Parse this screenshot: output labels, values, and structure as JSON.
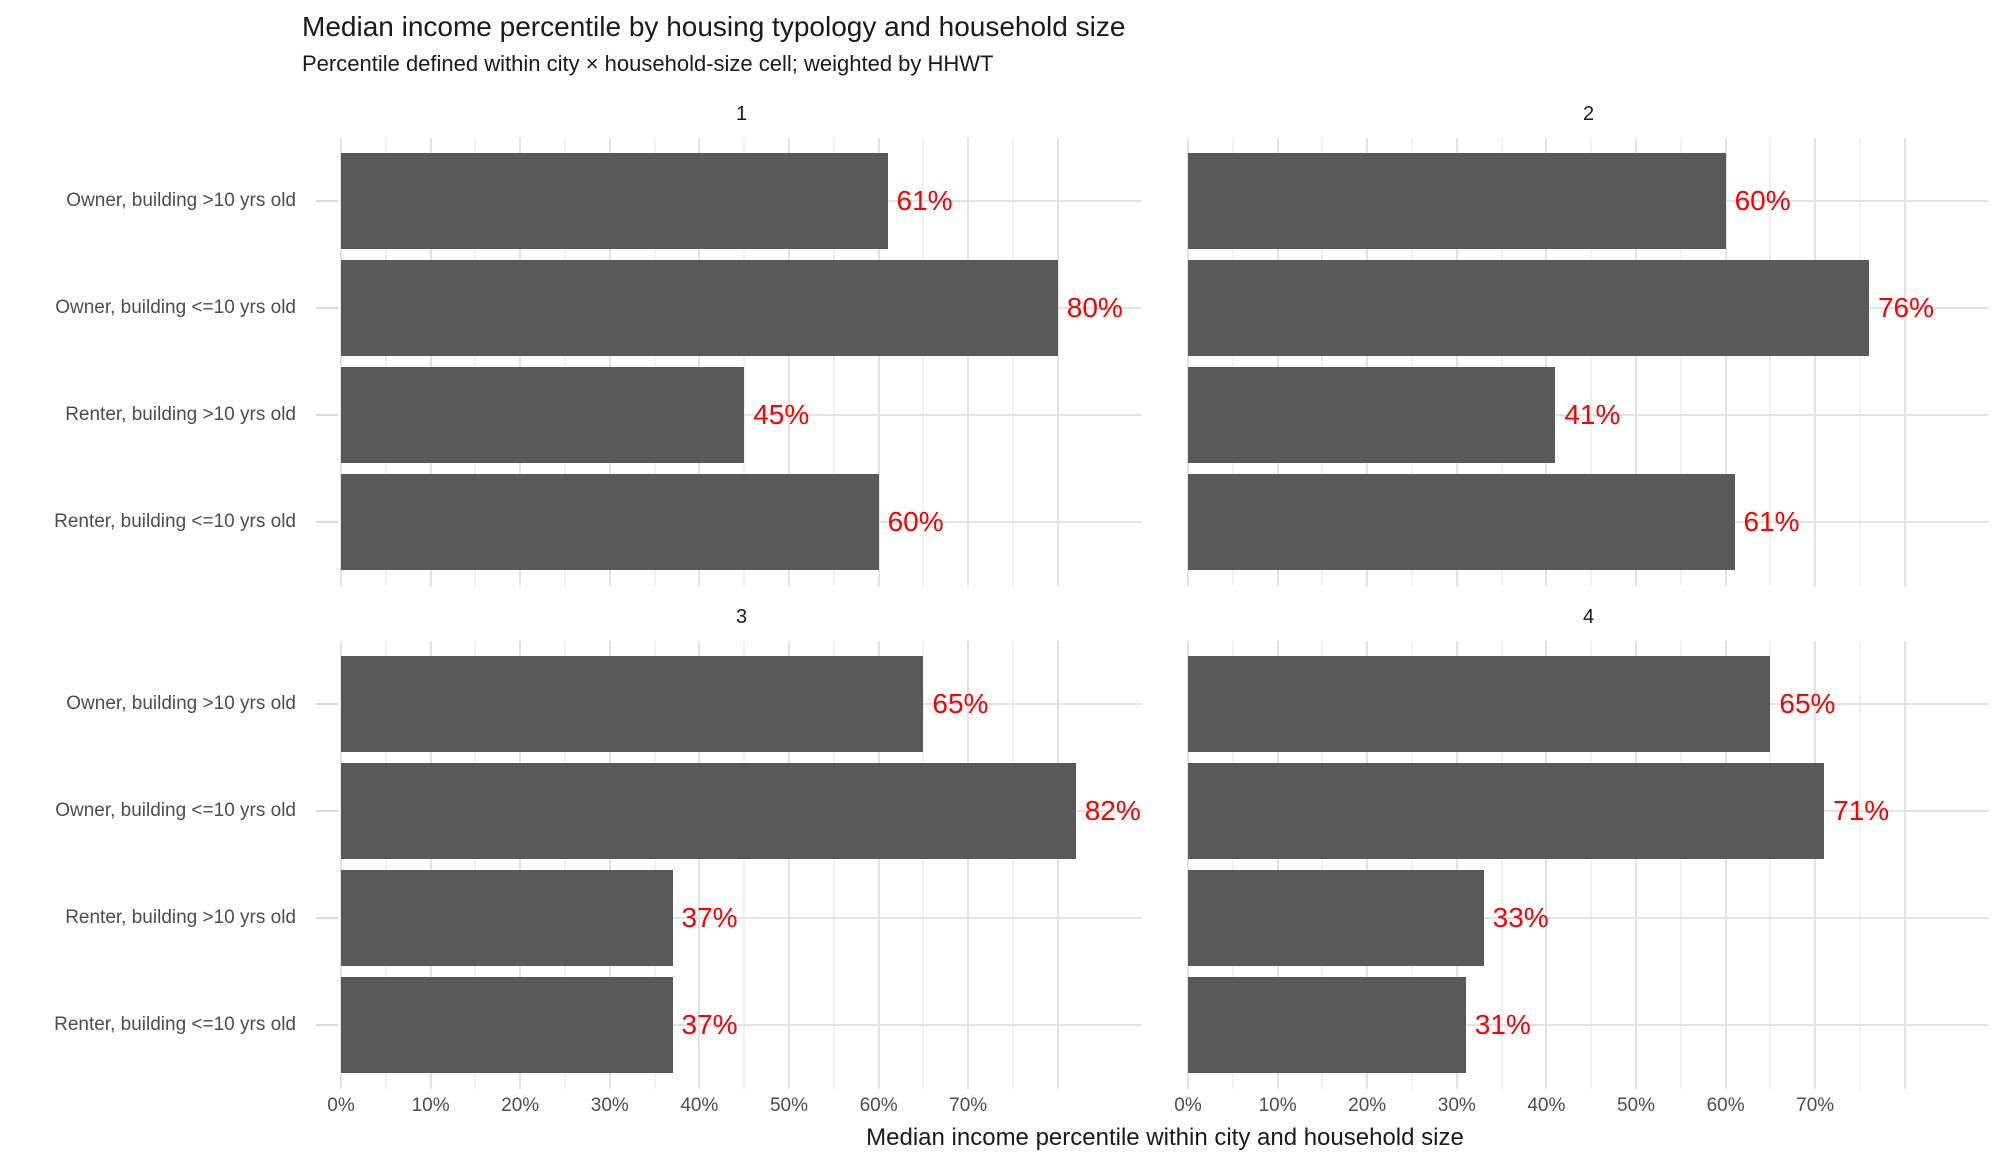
{
  "colors": {
    "bar": "#595959",
    "value_label": "#FF0000",
    "grid_major": "#E3E3E3",
    "grid_minor": "#F1F1F1",
    "tick": "#DBDBDB",
    "axis_text": "#4D4D4D",
    "text": "#1A1A1A"
  },
  "chart_data": {
    "type": "bar",
    "orientation": "horizontal",
    "title": "Median income percentile by housing typology and household size",
    "subtitle": "Percentile defined within city × household-size cell; weighted by HHWT",
    "xlabel": "Median income percentile within city and household size",
    "facet_variable": "household size",
    "categories": [
      "Owner, building >10 yrs old",
      "Owner, building <=10 yrs old",
      "Renter, building >10 yrs old",
      "Renter, building <=10 yrs old"
    ],
    "facets": [
      {
        "label": "1",
        "values": [
          61,
          80,
          45,
          60
        ]
      },
      {
        "label": "2",
        "values": [
          60,
          76,
          41,
          61
        ]
      },
      {
        "label": "3",
        "values": [
          65,
          82,
          37,
          37
        ]
      },
      {
        "label": "4",
        "values": [
          65,
          71,
          33,
          31
        ]
      }
    ],
    "value_suffix": "%",
    "x_ticks": [
      0,
      10,
      20,
      30,
      40,
      50,
      60,
      70
    ],
    "x_tick_labels": [
      "0%",
      "10%",
      "20%",
      "30%",
      "40%",
      "50%",
      "60%",
      "70%"
    ],
    "x_range": [
      0,
      89.4
    ],
    "grid": {
      "vertical_lines_every": 5,
      "vertical_lines_max": 80,
      "horizontal_lines": "at categories"
    },
    "legend": "none",
    "bar_labels_color": "red",
    "bar_labels_position": "right of bar end"
  }
}
